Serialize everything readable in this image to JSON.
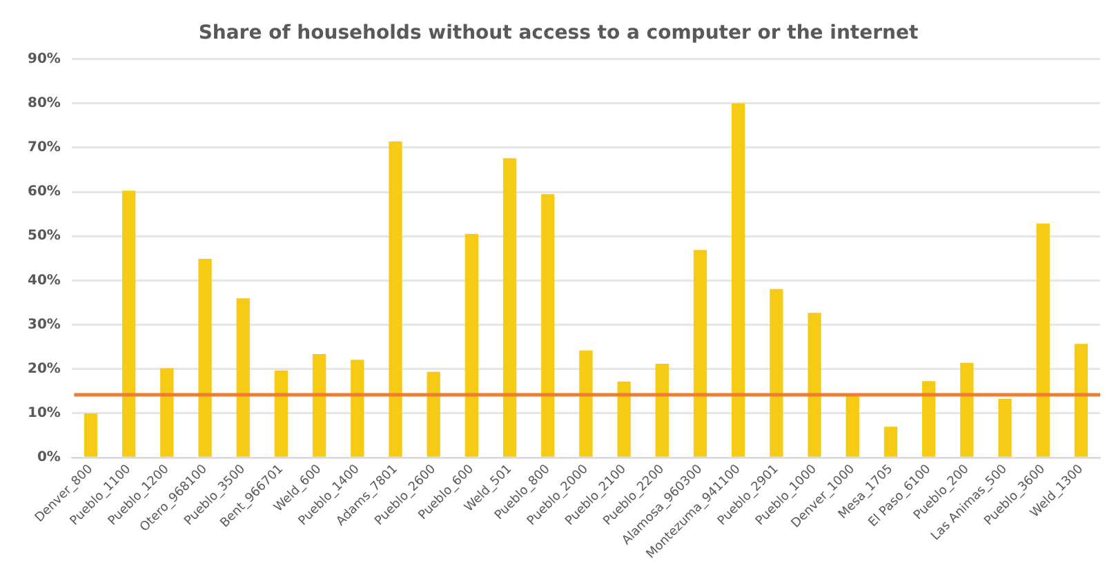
{
  "chart_data": {
    "type": "bar",
    "title": "Share of households without access to a computer or the internet",
    "categories": [
      "Denver_800",
      "Pueblo_1100",
      "Pueblo_1200",
      "Otero_968100",
      "Pueblo_3500",
      "Bent_966701",
      "Weld_600",
      "Pueblo_1400",
      "Adams_7801",
      "Pueblo_2600",
      "Pueblo_600",
      "Weld_501",
      "Pueblo_800",
      "Pueblo_2000",
      "Pueblo_2100",
      "Pueblo_2200",
      "Alamosa_960300",
      "Montezuma_941100",
      "Pueblo_2901",
      "Pueblo_1000",
      "Denver_1000",
      "Mesa_1705",
      "El Paso_6100",
      "Pueblo_200",
      "Las Animas_500",
      "Pueblo_3600",
      "Weld_1300"
    ],
    "values": [
      10,
      60.3,
      20.2,
      44.9,
      36,
      19.7,
      23.4,
      22.1,
      71.4,
      19.4,
      50.5,
      67.6,
      59.5,
      24.2,
      17.2,
      21.2,
      46.9,
      80,
      38.1,
      32.7,
      14.5,
      7,
      17.3,
      21.4,
      13.3,
      52.9,
      25.7
    ],
    "color": "#f6cb15",
    "ylim": [
      0,
      90
    ],
    "yticks": [
      {
        "value": 0,
        "label": "0%"
      },
      {
        "value": 10,
        "label": "10%"
      },
      {
        "value": 20,
        "label": "20%"
      },
      {
        "value": 30,
        "label": "30%"
      },
      {
        "value": 40,
        "label": "40%"
      },
      {
        "value": 50,
        "label": "50%"
      },
      {
        "value": 60,
        "label": "60%"
      },
      {
        "value": 70,
        "label": "70%"
      },
      {
        "value": 80,
        "label": "80%"
      },
      {
        "value": 90,
        "label": "90%"
      }
    ],
    "grid": "y",
    "legend": false,
    "ref_lines": [
      {
        "axis": "y",
        "value": 14.2,
        "color": "#ed7d31"
      }
    ]
  }
}
